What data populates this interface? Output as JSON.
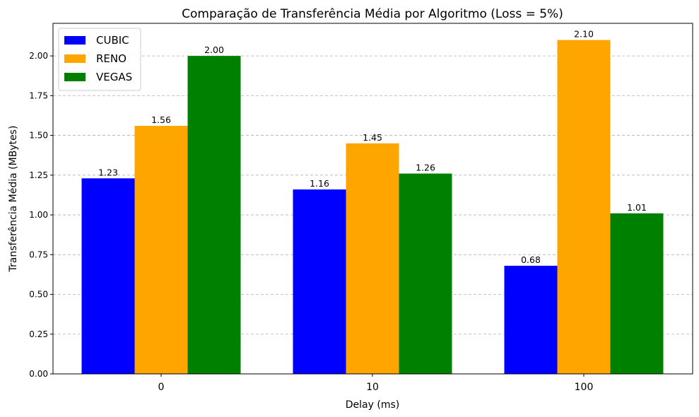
{
  "chart_data": {
    "type": "bar",
    "title": "Comparação de Transferência Média por Algoritmo (Loss = 5%)",
    "xlabel": "Delay (ms)",
    "ylabel": "Transferência Média (MBytes)",
    "categories": [
      "0",
      "10",
      "100"
    ],
    "series": [
      {
        "name": "CUBIC",
        "color": "#0000ff",
        "values": [
          1.23,
          1.16,
          0.68
        ],
        "labels": [
          "1.23",
          "1.16",
          "0.68"
        ]
      },
      {
        "name": "RENO",
        "color": "#ffa500",
        "values": [
          1.56,
          1.45,
          2.1
        ],
        "labels": [
          "1.56",
          "1.45",
          "2.10"
        ]
      },
      {
        "name": "VEGAS",
        "color": "#008000",
        "values": [
          2.0,
          1.26,
          1.01
        ],
        "labels": [
          "2.00",
          "1.26",
          "1.01"
        ]
      }
    ],
    "ylim": [
      0,
      2.205
    ],
    "yticks": [
      "0.00",
      "0.25",
      "0.50",
      "0.75",
      "1.00",
      "1.25",
      "1.50",
      "1.75",
      "2.00"
    ],
    "grid": "y-dashed",
    "legend": "top-left"
  }
}
